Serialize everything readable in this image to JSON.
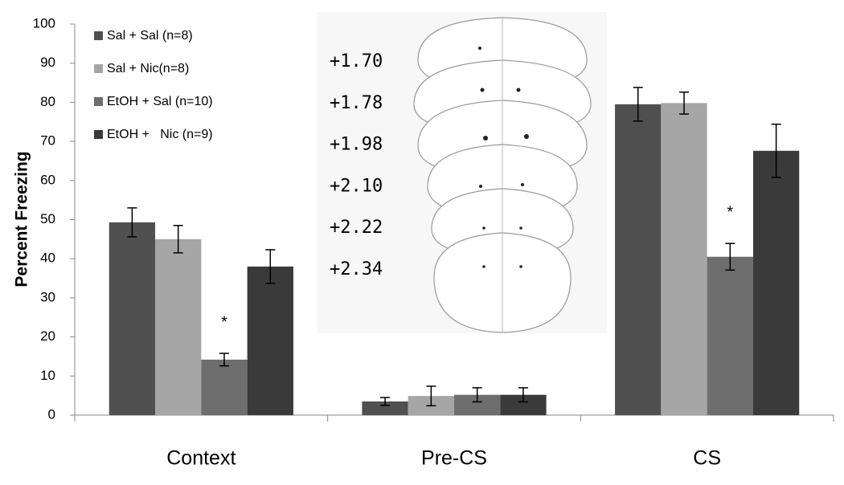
{
  "chart_data": {
    "type": "bar",
    "ylabel": "Percent Freezing",
    "categories": [
      "Context",
      "Pre-CS",
      "CS"
    ],
    "series": [
      {
        "name": "Sal + Sal (n=8)",
        "color": "#505050",
        "values": [
          49.3,
          3.5,
          79.5
        ],
        "errors": [
          3.7,
          1.0,
          4.3
        ],
        "markers": [
          null,
          null,
          null
        ]
      },
      {
        "name": "Sal + Nic(n=8)",
        "color": "#a6a6a6",
        "values": [
          45,
          4.9,
          79.8
        ],
        "errors": [
          3.5,
          2.5,
          2.8
        ],
        "markers": [
          null,
          null,
          null
        ]
      },
      {
        "name": "EtOH + Sal (n=10)",
        "color": "#6e6e6e",
        "values": [
          14.2,
          5.2,
          40.5
        ],
        "errors": [
          1.6,
          1.8,
          3.4
        ],
        "markers": [
          "*",
          null,
          "*"
        ]
      },
      {
        "name": "EtOH +   Nic (n=9)",
        "color": "#3a3a3a",
        "values": [
          38,
          5.2,
          67.6
        ],
        "errors": [
          4.3,
          1.8,
          6.8
        ],
        "markers": [
          null,
          null,
          null
        ]
      }
    ],
    "ylim": [
      0,
      100
    ],
    "yticks": [
      0,
      10,
      20,
      30,
      40,
      50,
      60,
      70,
      80,
      90,
      100
    ],
    "grid": false,
    "legend": "top-left",
    "inset_labels": [
      "+1.70",
      "+1.78",
      "+1.98",
      "+2.10",
      "+2.22",
      "+2.34"
    ]
  }
}
